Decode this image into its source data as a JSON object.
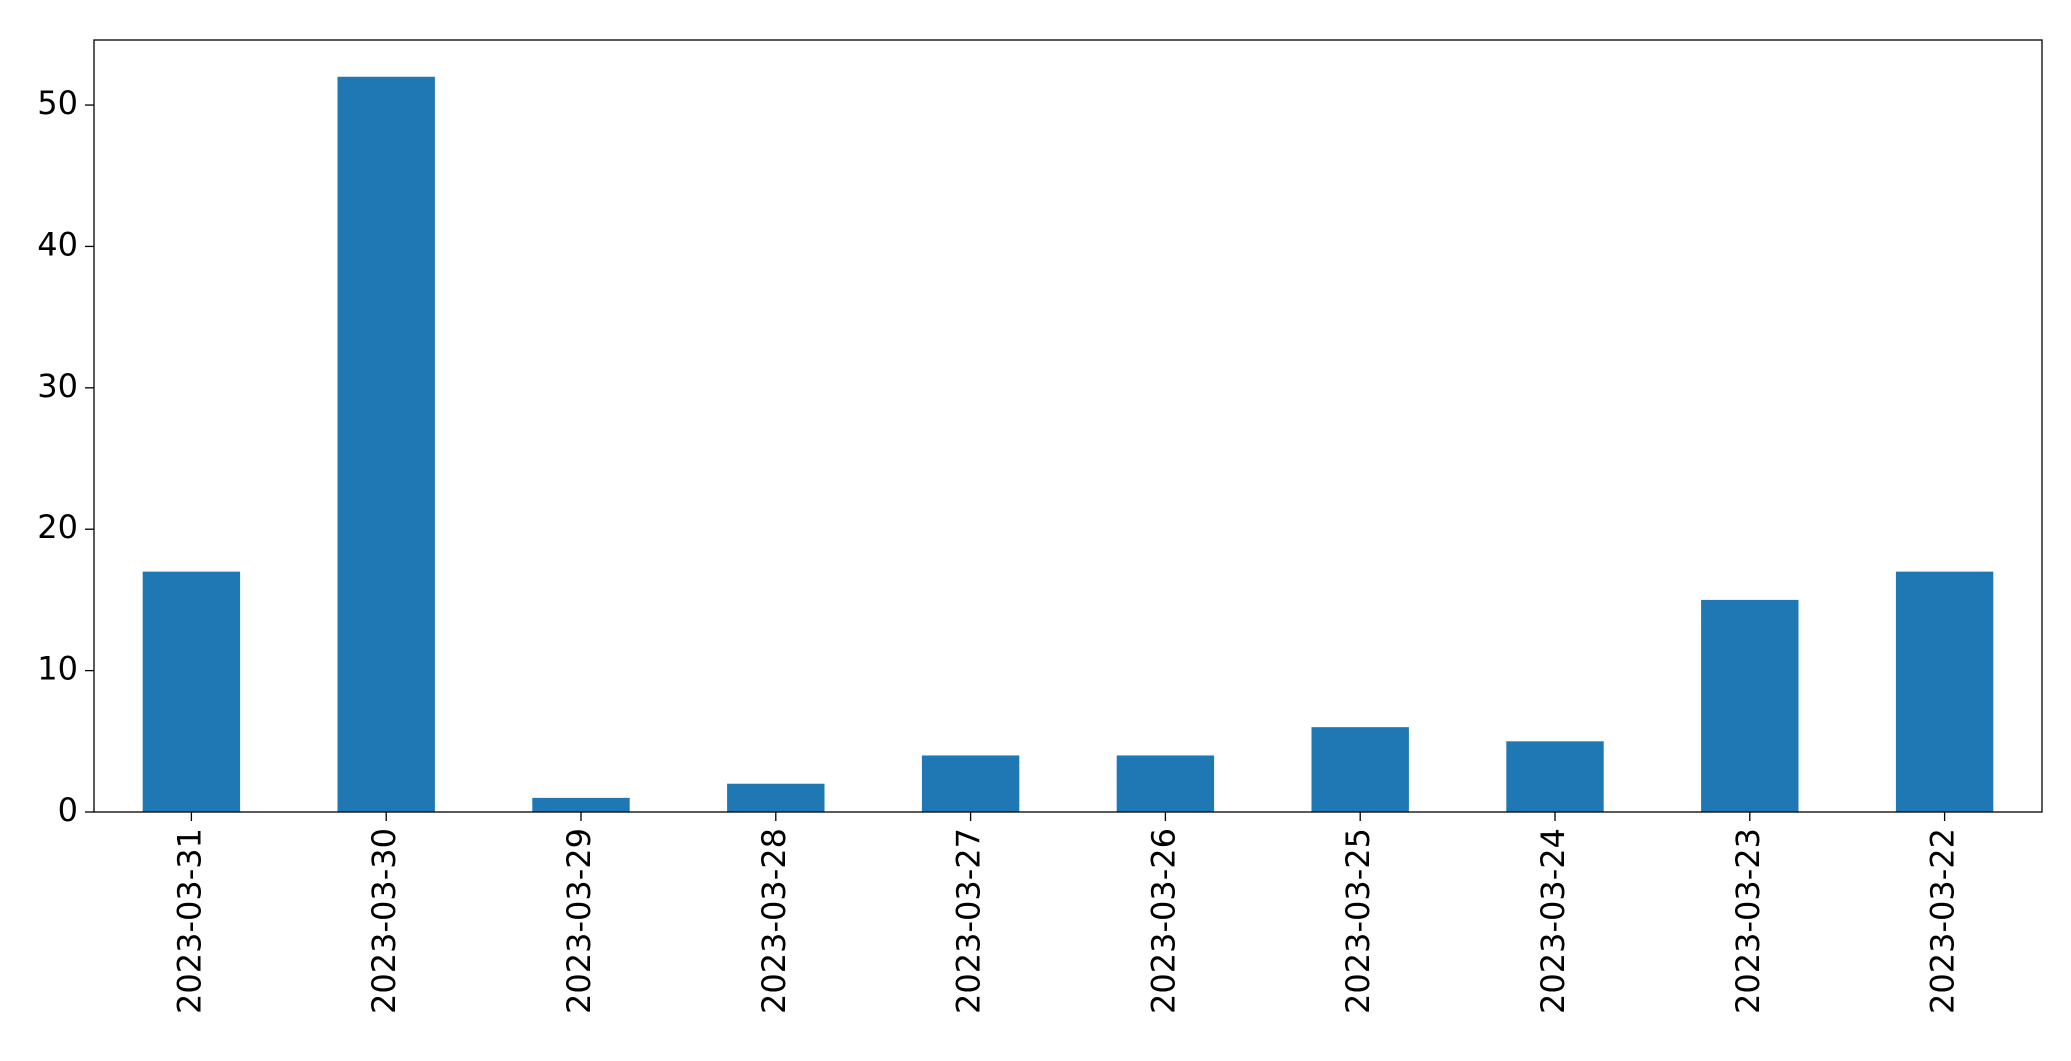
{
  "chart_data": {
    "type": "bar",
    "categories": [
      "2023-03-31",
      "2023-03-30",
      "2023-03-29",
      "2023-03-28",
      "2023-03-27",
      "2023-03-26",
      "2023-03-25",
      "2023-03-24",
      "2023-03-23",
      "2023-03-22"
    ],
    "values": [
      17,
      52,
      1,
      2,
      4,
      4,
      6,
      5,
      15,
      17
    ],
    "color": "#1f77b4",
    "ylim": [
      0,
      54.6
    ],
    "yticks": [
      0,
      10,
      20,
      30,
      40,
      50
    ],
    "grid": false
  }
}
